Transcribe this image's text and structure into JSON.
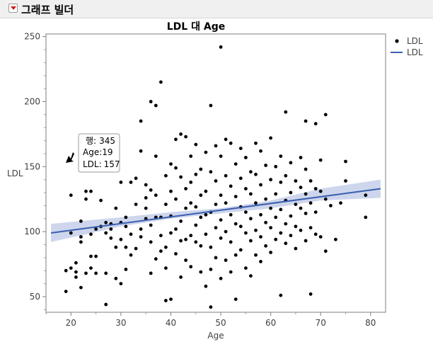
{
  "outline": {
    "title": "그래프 빌더"
  },
  "chart_data": {
    "type": "scatter",
    "title": "LDL 대 Age",
    "xlabel": "Age",
    "ylabel": "LDL",
    "xlim": [
      15,
      83
    ],
    "ylim": [
      38,
      252
    ],
    "xticks": [
      20,
      30,
      40,
      50,
      60,
      70,
      80
    ],
    "yticks": [
      50,
      100,
      150,
      200,
      250
    ],
    "legend": [
      {
        "label": "LDL",
        "kind": "marker"
      },
      {
        "label": "LDL",
        "kind": "line"
      }
    ],
    "fit": {
      "x0": 16,
      "y0": 99,
      "x1": 82,
      "y1": 133
    },
    "band": {
      "lower": [
        [
          16,
          92
        ],
        [
          30,
          104
        ],
        [
          40,
          110
        ],
        [
          50,
          114
        ],
        [
          60,
          118
        ],
        [
          70,
          124
        ],
        [
          82,
          126
        ]
      ],
      "upper": [
        [
          16,
          106
        ],
        [
          30,
          111
        ],
        [
          40,
          115
        ],
        [
          50,
          118
        ],
        [
          60,
          124
        ],
        [
          70,
          133
        ],
        [
          82,
          140
        ]
      ]
    },
    "tooltip": {
      "row_label": "행:",
      "row": "345",
      "age_label": "Age:",
      "age": "19",
      "ldl_label": "LDL:",
      "ldl": "157"
    },
    "points": [
      [
        19,
        54
      ],
      [
        19,
        70
      ],
      [
        20,
        72
      ],
      [
        20,
        99
      ],
      [
        20,
        128
      ],
      [
        21,
        69
      ],
      [
        21,
        65
      ],
      [
        21,
        76
      ],
      [
        22,
        57
      ],
      [
        22,
        92
      ],
      [
        22,
        96
      ],
      [
        22,
        108
      ],
      [
        23,
        68
      ],
      [
        23,
        131
      ],
      [
        23,
        125
      ],
      [
        24,
        72
      ],
      [
        24,
        81
      ],
      [
        24,
        98
      ],
      [
        24,
        131
      ],
      [
        25,
        68
      ],
      [
        25,
        81
      ],
      [
        25,
        102
      ],
      [
        26,
        104
      ],
      [
        26,
        124
      ],
      [
        27,
        44
      ],
      [
        27,
        68
      ],
      [
        27,
        99
      ],
      [
        27,
        107
      ],
      [
        28,
        95
      ],
      [
        28,
        106
      ],
      [
        28,
        102
      ],
      [
        29,
        64
      ],
      [
        29,
        88
      ],
      [
        29,
        118
      ],
      [
        30,
        60
      ],
      [
        30,
        94
      ],
      [
        30,
        107
      ],
      [
        30,
        138
      ],
      [
        31,
        71
      ],
      [
        31,
        88
      ],
      [
        31,
        111
      ],
      [
        31,
        104
      ],
      [
        32,
        82
      ],
      [
        32,
        98
      ],
      [
        32,
        138
      ],
      [
        33,
        87
      ],
      [
        33,
        121
      ],
      [
        33,
        141
      ],
      [
        34,
        96
      ],
      [
        34,
        102
      ],
      [
        34,
        185
      ],
      [
        34,
        162
      ],
      [
        35,
        110
      ],
      [
        35,
        118
      ],
      [
        35,
        126
      ],
      [
        35,
        136
      ],
      [
        36,
        68
      ],
      [
        36,
        92
      ],
      [
        36,
        105
      ],
      [
        36,
        132
      ],
      [
        36,
        200
      ],
      [
        37,
        79
      ],
      [
        37,
        111
      ],
      [
        37,
        128
      ],
      [
        37,
        158
      ],
      [
        37,
        197
      ],
      [
        38,
        85
      ],
      [
        38,
        97
      ],
      [
        38,
        111
      ],
      [
        38,
        215
      ],
      [
        39,
        47
      ],
      [
        39,
        72
      ],
      [
        39,
        88
      ],
      [
        39,
        121
      ],
      [
        39,
        143
      ],
      [
        40,
        48
      ],
      [
        40,
        99
      ],
      [
        40,
        112
      ],
      [
        40,
        131
      ],
      [
        40,
        152
      ],
      [
        41,
        83
      ],
      [
        41,
        102
      ],
      [
        41,
        125
      ],
      [
        41,
        149
      ],
      [
        41,
        171
      ],
      [
        42,
        65
      ],
      [
        42,
        93
      ],
      [
        42,
        108
      ],
      [
        42,
        142
      ],
      [
        42,
        175
      ],
      [
        43,
        78
      ],
      [
        43,
        94
      ],
      [
        43,
        118
      ],
      [
        43,
        133
      ],
      [
        43,
        173
      ],
      [
        44,
        73
      ],
      [
        44,
        97
      ],
      [
        44,
        122
      ],
      [
        44,
        138
      ],
      [
        44,
        158
      ],
      [
        45,
        92
      ],
      [
        45,
        105
      ],
      [
        45,
        119
      ],
      [
        45,
        144
      ],
      [
        45,
        167
      ],
      [
        46,
        69
      ],
      [
        46,
        89
      ],
      [
        46,
        111
      ],
      [
        46,
        128
      ],
      [
        46,
        148
      ],
      [
        47,
        58
      ],
      [
        47,
        98
      ],
      [
        47,
        113
      ],
      [
        47,
        131
      ],
      [
        47,
        161
      ],
      [
        48,
        42
      ],
      [
        48,
        71
      ],
      [
        48,
        88
      ],
      [
        48,
        115
      ],
      [
        48,
        146
      ],
      [
        48,
        197
      ],
      [
        49,
        80
      ],
      [
        49,
        103
      ],
      [
        49,
        121
      ],
      [
        49,
        139
      ],
      [
        49,
        166
      ],
      [
        50,
        64
      ],
      [
        50,
        95
      ],
      [
        50,
        109
      ],
      [
        50,
        128
      ],
      [
        50,
        158
      ],
      [
        50,
        242
      ],
      [
        51,
        78
      ],
      [
        51,
        100
      ],
      [
        51,
        122
      ],
      [
        51,
        143
      ],
      [
        51,
        171
      ],
      [
        52,
        69
      ],
      [
        52,
        92
      ],
      [
        52,
        113
      ],
      [
        52,
        135
      ],
      [
        52,
        168
      ],
      [
        53,
        48
      ],
      [
        53,
        82
      ],
      [
        53,
        106
      ],
      [
        53,
        127
      ],
      [
        53,
        152
      ],
      [
        54,
        86
      ],
      [
        54,
        104
      ],
      [
        54,
        119
      ],
      [
        54,
        141
      ],
      [
        54,
        164
      ],
      [
        55,
        72
      ],
      [
        55,
        99
      ],
      [
        55,
        115
      ],
      [
        55,
        133
      ],
      [
        55,
        157
      ],
      [
        56,
        66
      ],
      [
        56,
        93
      ],
      [
        56,
        110
      ],
      [
        56,
        129
      ],
      [
        56,
        146
      ],
      [
        57,
        82
      ],
      [
        57,
        101
      ],
      [
        57,
        122
      ],
      [
        57,
        144
      ],
      [
        57,
        168
      ],
      [
        58,
        77
      ],
      [
        58,
        96
      ],
      [
        58,
        113
      ],
      [
        58,
        136
      ],
      [
        58,
        162
      ],
      [
        59,
        89
      ],
      [
        59,
        107
      ],
      [
        59,
        125
      ],
      [
        59,
        151
      ],
      [
        60,
        84
      ],
      [
        60,
        103
      ],
      [
        60,
        118
      ],
      [
        60,
        140
      ],
      [
        60,
        172
      ],
      [
        61,
        94
      ],
      [
        61,
        111
      ],
      [
        61,
        129
      ],
      [
        61,
        150
      ],
      [
        62,
        51
      ],
      [
        62,
        99
      ],
      [
        62,
        117
      ],
      [
        62,
        138
      ],
      [
        62,
        158
      ],
      [
        63,
        91
      ],
      [
        63,
        106
      ],
      [
        63,
        124
      ],
      [
        63,
        143
      ],
      [
        63,
        192
      ],
      [
        64,
        97
      ],
      [
        64,
        112
      ],
      [
        64,
        130
      ],
      [
        64,
        153
      ],
      [
        65,
        87
      ],
      [
        65,
        104
      ],
      [
        65,
        121
      ],
      [
        65,
        139
      ],
      [
        66,
        101
      ],
      [
        66,
        118
      ],
      [
        66,
        134
      ],
      [
        66,
        157
      ],
      [
        67,
        93
      ],
      [
        67,
        114
      ],
      [
        67,
        129
      ],
      [
        67,
        148
      ],
      [
        67,
        185
      ],
      [
        68,
        52
      ],
      [
        68,
        103
      ],
      [
        68,
        122
      ],
      [
        68,
        139
      ],
      [
        69,
        98
      ],
      [
        69,
        115
      ],
      [
        69,
        133
      ],
      [
        69,
        183
      ],
      [
        70,
        96
      ],
      [
        70,
        131
      ],
      [
        70,
        155
      ],
      [
        71,
        85
      ],
      [
        71,
        125
      ],
      [
        71,
        190
      ],
      [
        72,
        120
      ],
      [
        73,
        94
      ],
      [
        74,
        122
      ],
      [
        75,
        139
      ],
      [
        75,
        154
      ],
      [
        79,
        111
      ],
      [
        79,
        128
      ]
    ]
  }
}
